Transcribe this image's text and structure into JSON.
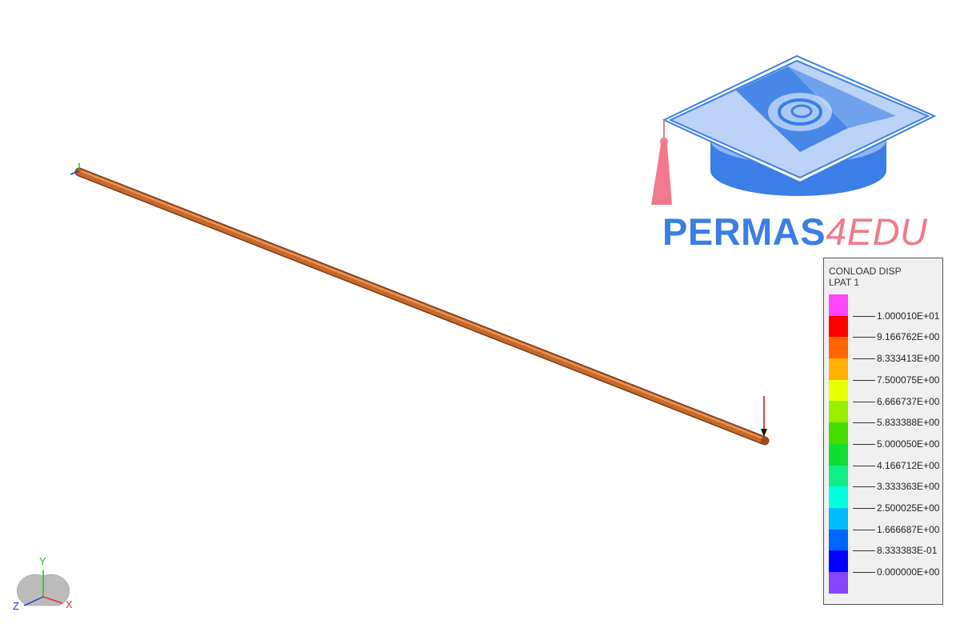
{
  "logo": {
    "brand": "PERMAS",
    "suffix": "4EDU",
    "brand_color": "#3a7ee6",
    "suffix_color": "#f07a8c"
  },
  "legend": {
    "title_line1": "CONLOAD DISP",
    "title_line2": "LPAT 1",
    "colors": [
      "#ff44ff",
      "#ff0000",
      "#ff6600",
      "#ffb000",
      "#e8ff00",
      "#99ee00",
      "#44dd00",
      "#11dd33",
      "#11ee88",
      "#00ffdd",
      "#00bbff",
      "#0066ff",
      "#0000ff",
      "#8844ff"
    ],
    "labels": [
      "1.000010E+01",
      "9.166762E+00",
      "8.333413E+00",
      "7.500075E+00",
      "6.666737E+00",
      "5.833388E+00",
      "5.000050E+00",
      "4.166712E+00",
      "3.333363E+00",
      "2.500025E+00",
      "1.666687E+00",
      "8.333383E-01",
      "0.000000E+00"
    ]
  },
  "triad": {
    "x_label": "X",
    "y_label": "Y",
    "z_label": "Z",
    "x_color": "#e83030",
    "y_color": "#22bb22",
    "z_color": "#2233cc"
  },
  "model": {
    "beam_color": "#c8692c",
    "load_color": "#e00000"
  }
}
